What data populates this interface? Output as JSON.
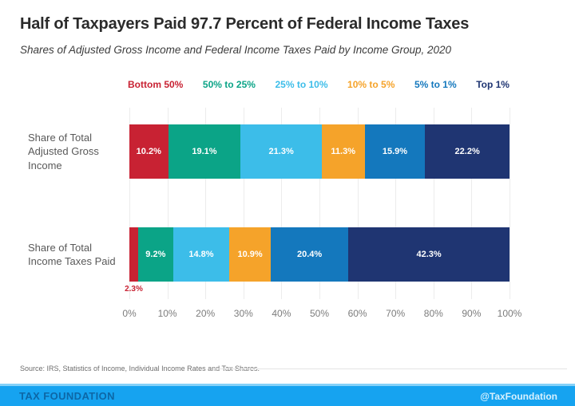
{
  "header": {
    "title": "Half of Taxpayers Paid 97.7 Percent of Federal Income Taxes",
    "subtitle": "Shares of Adjusted Gross Income and Federal Income Taxes Paid by Income Group, 2020"
  },
  "chart_data": {
    "type": "bar",
    "orientation": "horizontal-stacked",
    "title": "Half of Taxpayers Paid 97.7 Percent of Federal Income Taxes",
    "categories": [
      "Share of Total Adjusted Gross Income",
      "Share of Total Income Taxes Paid"
    ],
    "category_label_lines": [
      [
        "Share of Total",
        "Adjusted Gross",
        "Income"
      ],
      [
        "Share of Total",
        "Income Taxes Paid"
      ]
    ],
    "groups": [
      {
        "label": "Bottom 50%",
        "color": "#c82233",
        "values": [
          10.2,
          2.3
        ]
      },
      {
        "label": "50% to 25%",
        "color": "#0ba487",
        "values": [
          19.1,
          9.2
        ]
      },
      {
        "label": "25% to 10%",
        "color": "#3cbde9",
        "values": [
          21.3,
          14.8
        ]
      },
      {
        "label": "10% to 5%",
        "color": "#f5a32a",
        "values": [
          11.3,
          10.9
        ]
      },
      {
        "label": "5% to 1%",
        "color": "#1478bd",
        "values": [
          15.9,
          20.4
        ]
      },
      {
        "label": "Top 1%",
        "color": "#1f3572",
        "values": [
          22.2,
          42.3
        ]
      }
    ],
    "x_ticks": [
      "0%",
      "10%",
      "20%",
      "30%",
      "40%",
      "50%",
      "60%",
      "70%",
      "80%",
      "90%",
      "100%"
    ],
    "xlim": [
      0,
      100
    ],
    "grid": true,
    "legend_position": "top",
    "value_suffix": "%",
    "small_segment_threshold": 4
  },
  "source": "Source: IRS, Statistics of Income, Individual Income Rates and Tax Shares.",
  "footer": {
    "brand": "TAX FOUNDATION",
    "handle": "@TaxFoundation",
    "bar_color": "#16a3f0",
    "bar_highlight_color": "#85d1f8"
  }
}
